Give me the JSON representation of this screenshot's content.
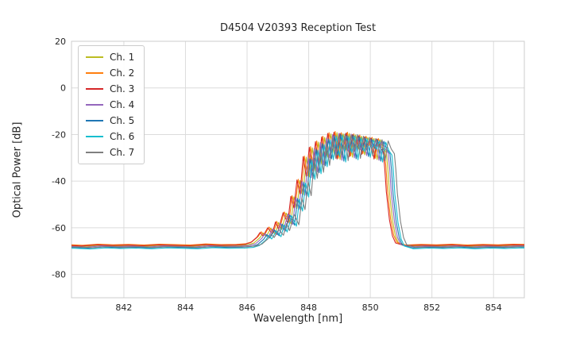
{
  "figure": {
    "background": "#ffffff",
    "grid_color": "#dcdcdc",
    "frame_color": "#cccccc",
    "text_color": "#262626",
    "tick_font_px": 11
  },
  "chart_data": {
    "type": "line",
    "title": "D4504 V20393 Reception Test",
    "xlabel": "Wavelength [nm]",
    "ylabel": "Optical Power [dB]",
    "xlim": [
      840.3,
      855.0
    ],
    "ylim": [
      -90,
      20
    ],
    "xticks": [
      842,
      844,
      846,
      848,
      850,
      852,
      854
    ],
    "yticks": [
      20,
      0,
      -20,
      -40,
      -60,
      -80
    ],
    "grid": true,
    "legend_position": "upper-left",
    "noise_floor_db": -68,
    "peak_region_nm": [
      846.5,
      850.9
    ],
    "peak_level_db": -19.5,
    "base_curve": [
      [
        839.8,
        -68.1
      ],
      [
        840.3,
        -68.0
      ],
      [
        840.8,
        -68.3
      ],
      [
        841.3,
        -67.8
      ],
      [
        841.8,
        -68.1
      ],
      [
        842.3,
        -67.9
      ],
      [
        842.8,
        -68.2
      ],
      [
        843.3,
        -67.8
      ],
      [
        843.8,
        -68.0
      ],
      [
        844.3,
        -68.2
      ],
      [
        844.8,
        -67.7
      ],
      [
        845.3,
        -68.0
      ],
      [
        845.8,
        -67.9
      ],
      [
        846.1,
        -67.6
      ],
      [
        846.3,
        -66.8
      ],
      [
        846.5,
        -64.5
      ],
      [
        846.6,
        -62.5
      ],
      [
        846.7,
        -64.0
      ],
      [
        846.85,
        -60.5
      ],
      [
        847.0,
        -63.0
      ],
      [
        847.1,
        -58.0
      ],
      [
        847.2,
        -61.0
      ],
      [
        847.35,
        -54.0
      ],
      [
        847.5,
        -58.5
      ],
      [
        847.6,
        -47.0
      ],
      [
        847.7,
        -52.0
      ],
      [
        847.8,
        -40.0
      ],
      [
        847.9,
        -46.0
      ],
      [
        848.0,
        -30.0
      ],
      [
        848.1,
        -38.5
      ],
      [
        848.2,
        -26.0
      ],
      [
        848.3,
        -36.0
      ],
      [
        848.4,
        -23.5
      ],
      [
        848.5,
        -33.0
      ],
      [
        848.6,
        -21.5
      ],
      [
        848.7,
        -30.0
      ],
      [
        848.8,
        -20.0
      ],
      [
        848.9,
        -28.5
      ],
      [
        849.0,
        -19.5
      ],
      [
        849.1,
        -31.0
      ],
      [
        849.2,
        -20.0
      ],
      [
        849.3,
        -27.0
      ],
      [
        849.4,
        -19.8
      ],
      [
        849.5,
        -30.0
      ],
      [
        849.6,
        -20.5
      ],
      [
        849.7,
        -26.5
      ],
      [
        849.8,
        -21.0
      ],
      [
        849.9,
        -29.0
      ],
      [
        850.0,
        -21.5
      ],
      [
        850.1,
        -25.5
      ],
      [
        850.2,
        -22.0
      ],
      [
        850.3,
        -31.0
      ],
      [
        850.4,
        -22.5
      ],
      [
        850.5,
        -26.0
      ],
      [
        850.6,
        -28.0
      ],
      [
        850.65,
        -35.0
      ],
      [
        850.7,
        -45.0
      ],
      [
        850.8,
        -57.0
      ],
      [
        850.9,
        -64.0
      ],
      [
        851.0,
        -67.0
      ],
      [
        851.3,
        -68.2
      ],
      [
        851.8,
        -67.9
      ],
      [
        852.3,
        -68.1
      ],
      [
        852.8,
        -67.8
      ],
      [
        853.3,
        -68.2
      ],
      [
        853.8,
        -67.9
      ],
      [
        854.3,
        -68.1
      ],
      [
        854.8,
        -67.8
      ],
      [
        855.6,
        -68.0
      ]
    ],
    "series": [
      {
        "name": "Ch. 1",
        "color": "#bcbd22",
        "dx": -0.08,
        "dy": 0.3
      },
      {
        "name": "Ch. 2",
        "color": "#ff7f0e",
        "dx": -0.14,
        "dy": 0.8
      },
      {
        "name": "Ch. 3",
        "color": "#d62728",
        "dx": -0.18,
        "dy": 0.5
      },
      {
        "name": "Ch. 4",
        "color": "#9467bd",
        "dx": -0.02,
        "dy": 0.0
      },
      {
        "name": "Ch. 5",
        "color": "#1f77b4",
        "dx": 0.04,
        "dy": -0.4
      },
      {
        "name": "Ch. 6",
        "color": "#17becf",
        "dx": 0.1,
        "dy": -0.8
      },
      {
        "name": "Ch. 7",
        "color": "#7f7f7f",
        "dx": 0.18,
        "dy": -0.2
      }
    ]
  }
}
